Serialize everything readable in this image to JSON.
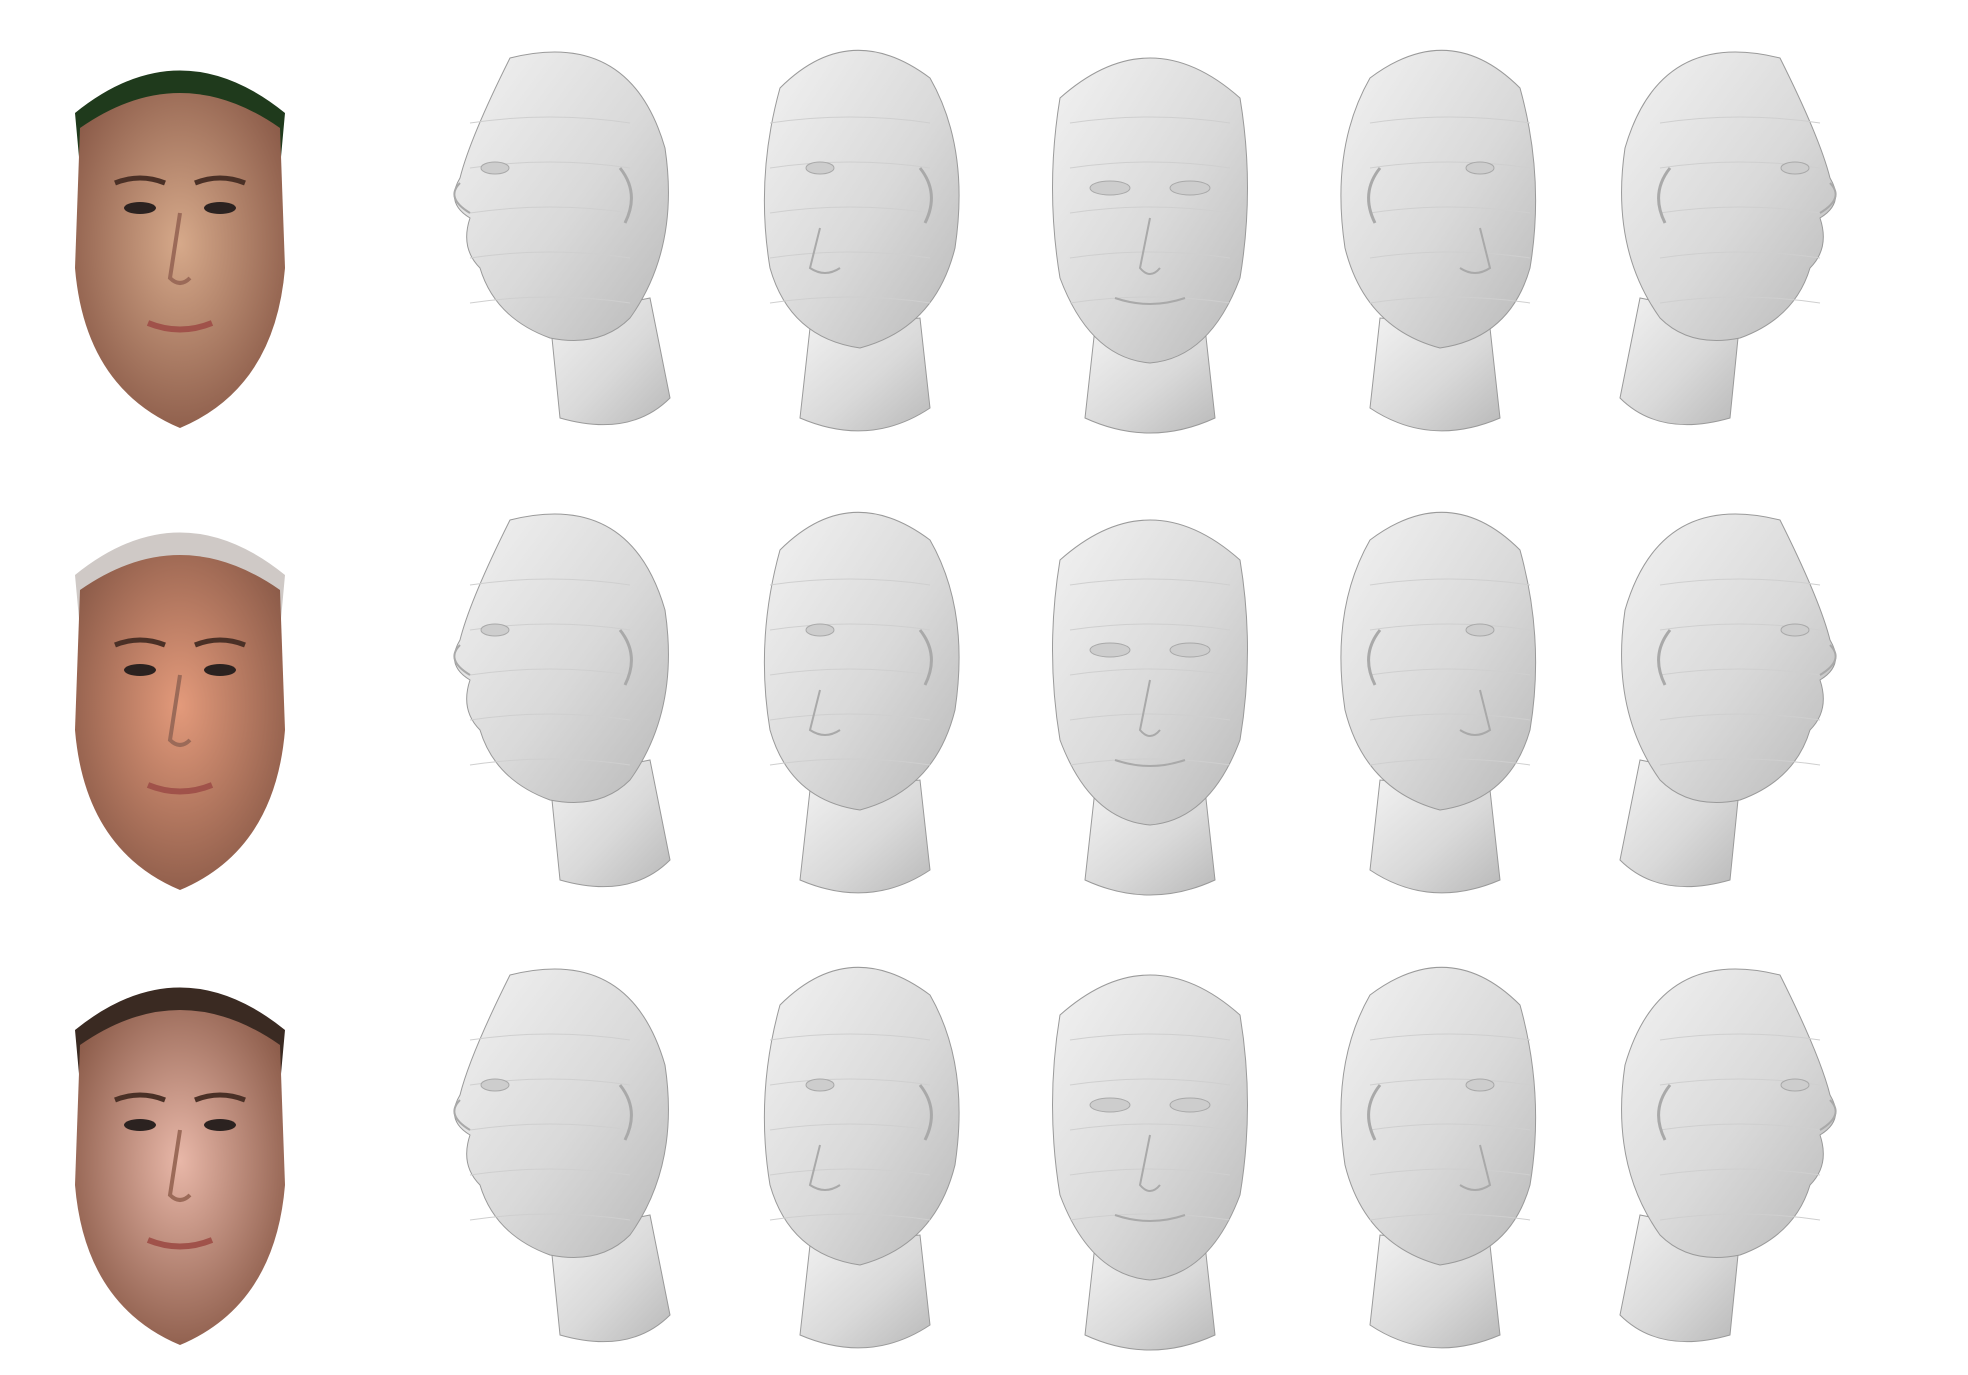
{
  "figure": {
    "rows": [
      {
        "subject": "subject-1",
        "photo": {
          "skin": "#d6a98a",
          "hair": "#1f3a1c",
          "background": "#1b4a12"
        },
        "mesh_views": [
          "left-profile",
          "left-three-quarter",
          "frontal",
          "right-three-quarter",
          "right-profile"
        ]
      },
      {
        "subject": "subject-2",
        "photo": {
          "skin": "#e39a7b",
          "hair": "#cfc9c6",
          "background": "#ffffff"
        },
        "mesh_views": [
          "left-profile",
          "left-three-quarter",
          "frontal",
          "right-three-quarter",
          "right-profile"
        ]
      },
      {
        "subject": "subject-3",
        "photo": {
          "skin": "#e8b7a8",
          "hair": "#3a2a22",
          "background": "#ffffff"
        },
        "mesh_views": [
          "left-profile",
          "left-three-quarter",
          "frontal",
          "right-three-quarter",
          "right-profile"
        ]
      }
    ],
    "mesh_color": "#d9d9d9",
    "mesh_shade": "#b9b9b9",
    "mesh_edge": "#9a9a9a"
  }
}
